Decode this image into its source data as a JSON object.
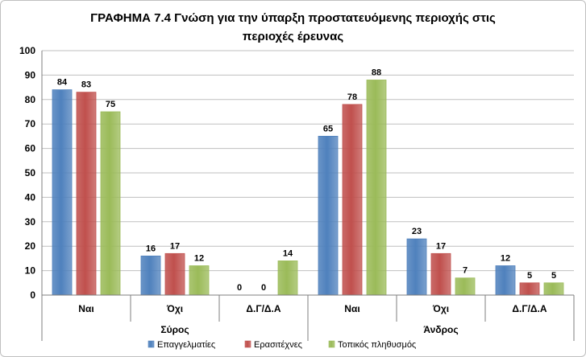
{
  "chart_data": {
    "type": "bar",
    "title_line1": "ΓΡΑΦΗΜΑ 7.4 Γνώση για την ύπαρξη προστατευόμενης περιοχής στις",
    "title_line2": "περιοχές έρευνας",
    "groups": [
      {
        "name": "Σύρος",
        "categories": [
          "Ναι",
          "Όχι",
          "Δ.Γ/Δ.Α"
        ]
      },
      {
        "name": "Άνδρος",
        "categories": [
          "Ναι",
          "Όχι",
          "Δ.Γ/Δ.Α"
        ]
      }
    ],
    "series": [
      {
        "name": "Επαγγελματίες",
        "color": "#4f81bd",
        "values": [
          84,
          16,
          0,
          65,
          23,
          12
        ]
      },
      {
        "name": "Ερασιτέχνες",
        "color": "#c0504d",
        "values": [
          83,
          17,
          0,
          78,
          17,
          5
        ]
      },
      {
        "name": "Τοπικός πληθυσμός",
        "color": "#9bbb59",
        "values": [
          75,
          12,
          14,
          88,
          7,
          5
        ]
      }
    ],
    "ylim": [
      0,
      100
    ],
    "yticks": [
      0,
      10,
      20,
      30,
      40,
      50,
      60,
      70,
      80,
      90,
      100
    ],
    "grid": true,
    "legend_position": "bottom"
  }
}
